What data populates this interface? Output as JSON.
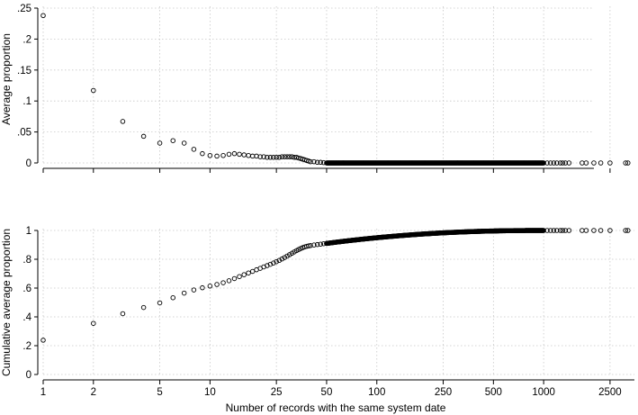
{
  "chart_data": [
    {
      "type": "scatter",
      "ylabel": "Average proportion",
      "xscale": "log",
      "xlim": [
        1,
        3500
      ],
      "ylim": [
        0,
        0.25
      ],
      "yticks": [
        0,
        0.05,
        0.1,
        0.15,
        0.2,
        0.25
      ],
      "ytick_labels": [
        "0",
        ".05",
        ".1",
        ".15",
        ".2",
        ".25"
      ],
      "grid": true,
      "points": [
        [
          1,
          0.238
        ],
        [
          2,
          0.117
        ],
        [
          3,
          0.067
        ],
        [
          4,
          0.043
        ],
        [
          5,
          0.032
        ],
        [
          6,
          0.036
        ],
        [
          7,
          0.032
        ],
        [
          8,
          0.022
        ],
        [
          9,
          0.015
        ],
        [
          10,
          0.012
        ],
        [
          11,
          0.011
        ],
        [
          12,
          0.012
        ],
        [
          13,
          0.014
        ],
        [
          14,
          0.015
        ],
        [
          15,
          0.014
        ],
        [
          16,
          0.013
        ],
        [
          17,
          0.012
        ],
        [
          18,
          0.011
        ],
        [
          19,
          0.011
        ],
        [
          20,
          0.01
        ],
        [
          21,
          0.01
        ],
        [
          22,
          0.009
        ],
        [
          23,
          0.009
        ],
        [
          24,
          0.009
        ],
        [
          25,
          0.009
        ],
        [
          26,
          0.009
        ],
        [
          27,
          0.01
        ],
        [
          28,
          0.01
        ],
        [
          29,
          0.01
        ],
        [
          30,
          0.01
        ],
        [
          31,
          0.01
        ],
        [
          32,
          0.009
        ],
        [
          33,
          0.009
        ],
        [
          34,
          0.008
        ],
        [
          35,
          0.007
        ],
        [
          36,
          0.006
        ],
        [
          37,
          0.005
        ],
        [
          38,
          0.004
        ],
        [
          39,
          0.003
        ],
        [
          40,
          0.002
        ],
        [
          42,
          0.002
        ],
        [
          44,
          0.001
        ],
        [
          46,
          0.001
        ],
        [
          48,
          0.0005
        ]
      ],
      "tail_zero_range": [
        50,
        1000
      ],
      "tail_zero_points": [
        1050,
        1100,
        1150,
        1200,
        1260,
        1300,
        1350,
        1420,
        1700,
        1800,
        2000,
        2200,
        2500,
        3100,
        3200
      ]
    },
    {
      "type": "scatter",
      "ylabel": "Cumulative average proportion",
      "xlabel": "Number of records with the same system date",
      "xscale": "log",
      "xlim": [
        1,
        3500
      ],
      "ylim": [
        0,
        1
      ],
      "yticks": [
        0,
        0.2,
        0.4,
        0.6,
        0.8,
        1
      ],
      "ytick_labels": [
        "0",
        ".2",
        ".4",
        ".6",
        ".8",
        "1"
      ],
      "xticks": [
        1,
        2,
        5,
        10,
        25,
        50,
        100,
        250,
        500,
        1000,
        2500
      ],
      "xtick_labels": [
        "1",
        "2",
        "5",
        "10",
        "25",
        "50",
        "100",
        "250",
        "500",
        "1000",
        "2500"
      ],
      "grid": true,
      "points": [
        [
          1,
          0.238
        ],
        [
          2,
          0.355
        ],
        [
          3,
          0.422
        ],
        [
          4,
          0.465
        ],
        [
          5,
          0.497
        ],
        [
          6,
          0.533
        ],
        [
          7,
          0.565
        ],
        [
          8,
          0.587
        ],
        [
          9,
          0.602
        ],
        [
          10,
          0.614
        ],
        [
          11,
          0.625
        ],
        [
          12,
          0.637
        ],
        [
          13,
          0.651
        ],
        [
          14,
          0.666
        ],
        [
          15,
          0.68
        ],
        [
          16,
          0.693
        ],
        [
          17,
          0.705
        ],
        [
          18,
          0.716
        ],
        [
          19,
          0.727
        ],
        [
          20,
          0.737
        ],
        [
          21,
          0.747
        ],
        [
          22,
          0.756
        ],
        [
          23,
          0.765
        ],
        [
          24,
          0.774
        ],
        [
          25,
          0.783
        ],
        [
          26,
          0.792
        ],
        [
          27,
          0.802
        ],
        [
          28,
          0.812
        ],
        [
          29,
          0.822
        ],
        [
          30,
          0.832
        ],
        [
          31,
          0.842
        ],
        [
          32,
          0.851
        ],
        [
          33,
          0.86
        ],
        [
          34,
          0.868
        ],
        [
          35,
          0.875
        ],
        [
          36,
          0.881
        ],
        [
          37,
          0.886
        ],
        [
          38,
          0.89
        ],
        [
          39,
          0.893
        ],
        [
          40,
          0.895
        ],
        [
          42,
          0.899
        ],
        [
          44,
          0.902
        ],
        [
          46,
          0.905
        ],
        [
          48,
          0.908
        ],
        [
          50,
          0.91
        ]
      ],
      "tail_range": [
        50,
        1000
      ],
      "tail_start": 0.91,
      "tail_end": 1.0,
      "tail_one_points": [
        1050,
        1100,
        1150,
        1200,
        1260,
        1300,
        1350,
        1420,
        1700,
        1800,
        2000,
        2200,
        2500,
        3100,
        3200
      ]
    }
  ]
}
